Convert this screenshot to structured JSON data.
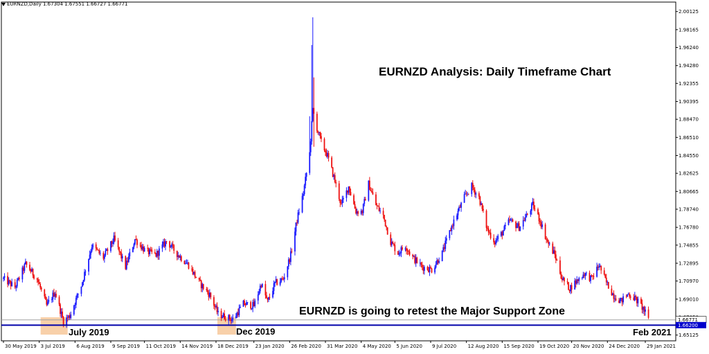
{
  "window": {
    "symbol_header": "EURNZD,Daily  1.67304 1.67551 1.66727 1.66771"
  },
  "colors": {
    "bull": "#1a1aff",
    "bear": "#ee1111",
    "support_line": "#0000aa",
    "current_price_line": "#a0a0a0",
    "highlight_zone": "#f7c89a",
    "price_tag_support": "#0000cc",
    "price_tag_current": "#ffffff"
  },
  "chart_data": {
    "type": "candlestick",
    "title": "EURNZD Analysis: Daily Timeframe Chart",
    "annotation": "EURNZD is going to retest the Major Support Zone",
    "xlabel": "",
    "ylabel": "",
    "ylim": [
      1.645,
      2.01
    ],
    "grid": false,
    "y_ticks": [
      "2.00125",
      "1.98165",
      "1.96240",
      "1.94280",
      "1.92355",
      "1.90395",
      "1.88470",
      "1.86510",
      "1.84550",
      "1.82625",
      "1.80665",
      "1.78740",
      "1.76780",
      "1.74855",
      "1.72895",
      "1.70970",
      "1.69010",
      "1.67050",
      "1.65125"
    ],
    "x_ticks": [
      "30 May 2019",
      "3 Jul 2019",
      "6 Aug 2019",
      "9 Sep 2019",
      "11 Oct 2019",
      "14 Nov 2019",
      "18 Dec 2019",
      "23 Jan 2020",
      "26 Feb 2020",
      "31 Mar 2020",
      "4 May 2020",
      "5 Jun 2020",
      "9 Jul 2020",
      "12 Aug 2020",
      "15 Sep 2020",
      "19 Oct 2020",
      "20 Nov 2020",
      "24 Dec 2020",
      "29 Jan 2021"
    ],
    "support_level": 1.662,
    "support_label": "1.66200",
    "current_price": 1.66771,
    "current_label": "1.66771",
    "zone_labels": [
      "July 2019",
      "Dec 2019",
      "Feb 2021"
    ],
    "close_path": [
      {
        "d": "30 May 2019",
        "v": 1.712
      },
      {
        "d": "10 Jun 2019",
        "v": 1.703
      },
      {
        "d": "20 Jun 2019",
        "v": 1.728
      },
      {
        "d": "1 Jul 2019",
        "v": 1.712
      },
      {
        "d": "10 Jul 2019",
        "v": 1.683
      },
      {
        "d": "18 Jul 2019",
        "v": 1.698
      },
      {
        "d": "26 Jul 2019",
        "v": 1.666
      },
      {
        "d": "1 Aug 2019",
        "v": 1.672
      },
      {
        "d": "12 Aug 2019",
        "v": 1.705
      },
      {
        "d": "22 Aug 2019",
        "v": 1.748
      },
      {
        "d": "2 Sep 2019",
        "v": 1.735
      },
      {
        "d": "12 Sep 2019",
        "v": 1.755
      },
      {
        "d": "23 Sep 2019",
        "v": 1.725
      },
      {
        "d": "2 Oct 2019",
        "v": 1.755
      },
      {
        "d": "12 Oct 2019",
        "v": 1.742
      },
      {
        "d": "22 Oct 2019",
        "v": 1.738
      },
      {
        "d": "1 Nov 2019",
        "v": 1.753
      },
      {
        "d": "12 Nov 2019",
        "v": 1.738
      },
      {
        "d": "22 Nov 2019",
        "v": 1.727
      },
      {
        "d": "2 Dec 2019",
        "v": 1.708
      },
      {
        "d": "12 Dec 2019",
        "v": 1.695
      },
      {
        "d": "20 Dec 2019",
        "v": 1.674
      },
      {
        "d": "3 Jan 2020",
        "v": 1.668
      },
      {
        "d": "13 Jan 2020",
        "v": 1.685
      },
      {
        "d": "23 Jan 2020",
        "v": 1.683
      },
      {
        "d": "30 Jan 2020",
        "v": 1.707
      },
      {
        "d": "5 Feb 2020",
        "v": 1.687
      },
      {
        "d": "12 Feb 2020",
        "v": 1.707
      },
      {
        "d": "20 Feb 2020",
        "v": 1.712
      },
      {
        "d": "27 Feb 2020",
        "v": 1.738
      },
      {
        "d": "4 Mar 2020",
        "v": 1.776
      },
      {
        "d": "10 Mar 2020",
        "v": 1.805
      },
      {
        "d": "16 Mar 2020",
        "v": 1.848
      },
      {
        "d": "19 Mar 2020",
        "v": 1.895
      },
      {
        "d": "23 Mar 2020",
        "v": 1.875
      },
      {
        "d": "27 Mar 2020",
        "v": 1.86
      },
      {
        "d": "2 Apr 2020",
        "v": 1.845
      },
      {
        "d": "8 Apr 2020",
        "v": 1.822
      },
      {
        "d": "15 Apr 2020",
        "v": 1.792
      },
      {
        "d": "22 Apr 2020",
        "v": 1.812
      },
      {
        "d": "29 Apr 2020",
        "v": 1.785
      },
      {
        "d": "5 May 2020",
        "v": 1.785
      },
      {
        "d": "11 May 2020",
        "v": 1.815
      },
      {
        "d": "18 May 2020",
        "v": 1.792
      },
      {
        "d": "25 May 2020",
        "v": 1.78
      },
      {
        "d": "1 Jun 2020",
        "v": 1.752
      },
      {
        "d": "8 Jun 2020",
        "v": 1.74
      },
      {
        "d": "15 Jun 2020",
        "v": 1.748
      },
      {
        "d": "22 Jun 2020",
        "v": 1.735
      },
      {
        "d": "1 Jul 2020",
        "v": 1.725
      },
      {
        "d": "10 Jul 2020",
        "v": 1.722
      },
      {
        "d": "20 Jul 2020",
        "v": 1.74
      },
      {
        "d": "30 Jul 2020",
        "v": 1.772
      },
      {
        "d": "10 Aug 2020",
        "v": 1.8
      },
      {
        "d": "17 Aug 2020",
        "v": 1.812
      },
      {
        "d": "24 Aug 2020",
        "v": 1.8
      },
      {
        "d": "1 Sep 2020",
        "v": 1.765
      },
      {
        "d": "8 Sep 2020",
        "v": 1.752
      },
      {
        "d": "15 Sep 2020",
        "v": 1.762
      },
      {
        "d": "22 Sep 2020",
        "v": 1.775
      },
      {
        "d": "1 Oct 2020",
        "v": 1.768
      },
      {
        "d": "8 Oct 2020",
        "v": 1.78
      },
      {
        "d": "14 Oct 2020",
        "v": 1.792
      },
      {
        "d": "21 Oct 2020",
        "v": 1.775
      },
      {
        "d": "28 Oct 2020",
        "v": 1.752
      },
      {
        "d": "4 Nov 2020",
        "v": 1.738
      },
      {
        "d": "11 Nov 2020",
        "v": 1.712
      },
      {
        "d": "18 Nov 2020",
        "v": 1.702
      },
      {
        "d": "25 Nov 2020",
        "v": 1.71
      },
      {
        "d": "2 Dec 2020",
        "v": 1.718
      },
      {
        "d": "9 Dec 2020",
        "v": 1.712
      },
      {
        "d": "16 Dec 2020",
        "v": 1.727
      },
      {
        "d": "23 Dec 2020",
        "v": 1.708
      },
      {
        "d": "30 Dec 2020",
        "v": 1.694
      },
      {
        "d": "6 Jan 2021",
        "v": 1.688
      },
      {
        "d": "13 Jan 2021",
        "v": 1.696
      },
      {
        "d": "20 Jan 2021",
        "v": 1.69
      },
      {
        "d": "27 Jan 2021",
        "v": 1.68
      },
      {
        "d": "1 Feb 2021",
        "v": 1.668
      }
    ]
  }
}
